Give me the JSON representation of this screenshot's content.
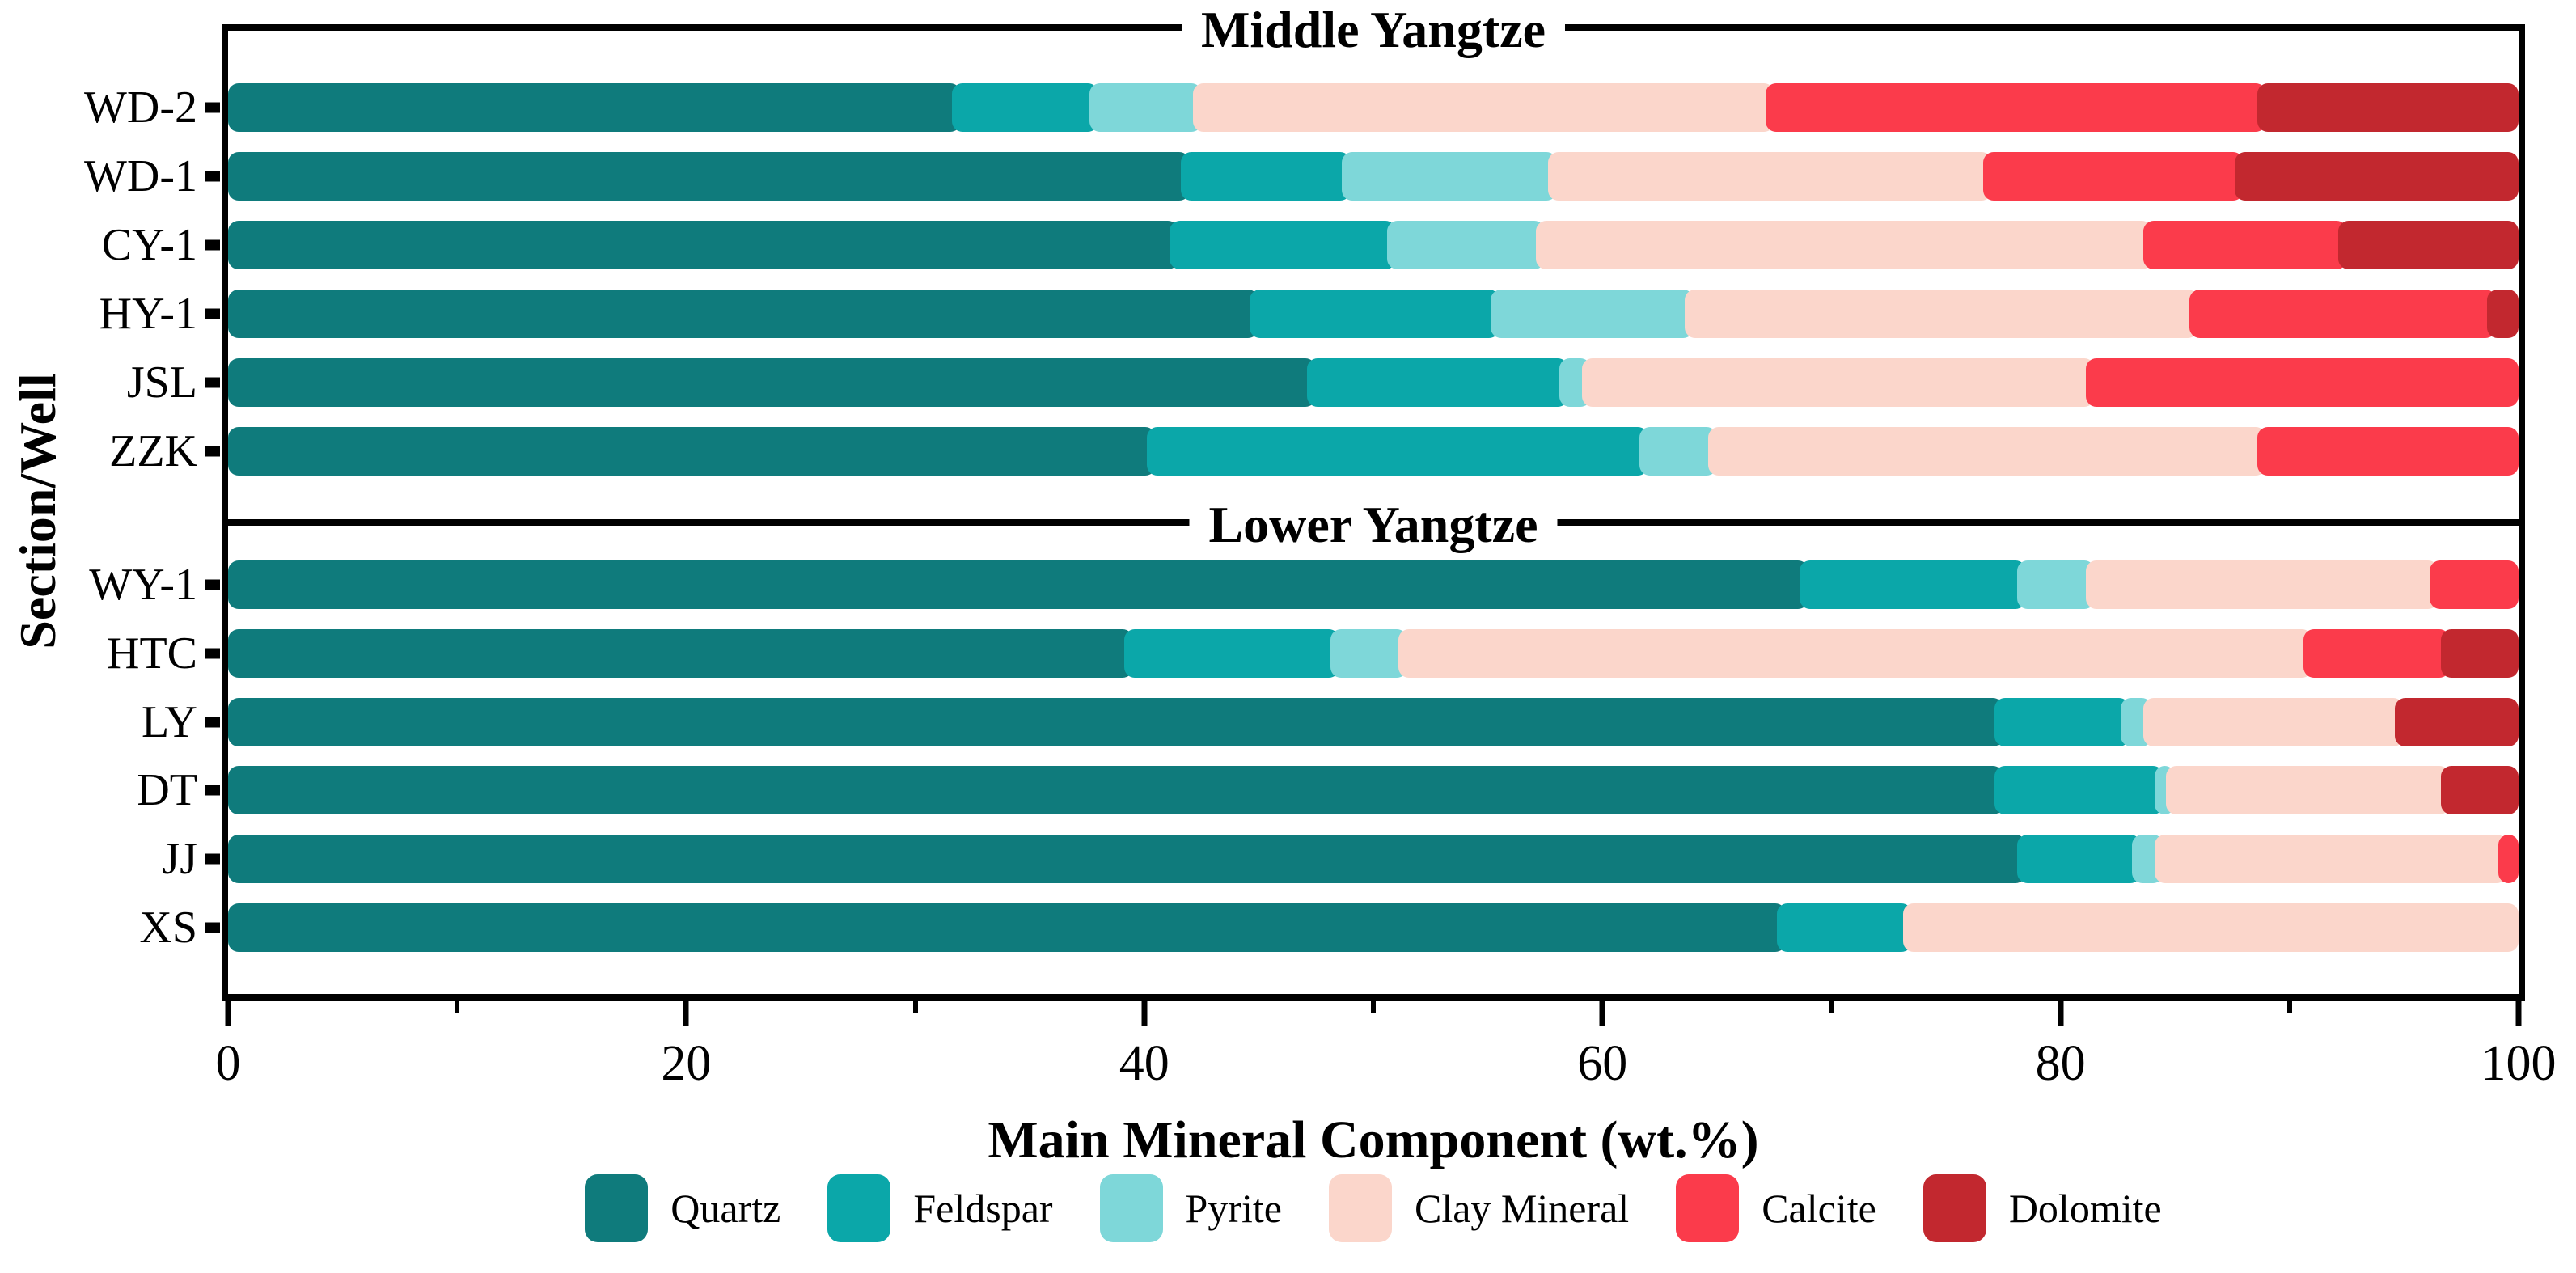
{
  "figure": {
    "y_axis_title": "Section/Well",
    "x_axis_title": "Main Mineral Component (wt.%)"
  },
  "chart_data": {
    "type": "bar",
    "orientation": "horizontal",
    "stacked": true,
    "xlabel": "Main Mineral Component (wt.%)",
    "ylabel": "Section/Well",
    "xlim": [
      0,
      100
    ],
    "xticks": [
      0,
      20,
      40,
      60,
      80,
      100
    ],
    "minor_xticks": [
      10,
      30,
      50,
      70,
      90
    ],
    "grid": false,
    "legend_position": "bottom",
    "frame_color": "#000000",
    "series_names": [
      "Quartz",
      "Feldspar",
      "Pyrite",
      "Clay Mineral",
      "Calcite",
      "Dolomite"
    ],
    "series_colors": [
      "#0f7b7c",
      "#0ba7a9",
      "#7ed7d9",
      "#fbd6cb",
      "#fb3b4b",
      "#c2282f"
    ],
    "panels": [
      {
        "title": "Middle Yangtze",
        "rows": [
          {
            "label": "WD-2",
            "values": [
              32,
              6,
              4.5,
              25,
              21.5,
              11
            ]
          },
          {
            "label": "WD-1",
            "values": [
              42,
              7,
              9,
              19,
              11,
              12
            ]
          },
          {
            "label": "CY-1",
            "values": [
              41.5,
              9.5,
              6.5,
              26.5,
              8.5,
              7.5
            ]
          },
          {
            "label": "HY-1",
            "values": [
              45,
              10.5,
              8.5,
              22,
              13,
              1
            ]
          },
          {
            "label": "JSL",
            "values": [
              47.5,
              11,
              1,
              22,
              18.5,
              0
            ]
          },
          {
            "label": "ZZK",
            "values": [
              40.5,
              21.5,
              3,
              24,
              11,
              0
            ]
          }
        ]
      },
      {
        "title": "Lower Yangtze",
        "rows": [
          {
            "label": "WY-1",
            "values": [
              69,
              9.5,
              3,
              15,
              3.5,
              0
            ]
          },
          {
            "label": "HTC",
            "values": [
              39.5,
              9,
              3,
              39.5,
              6,
              3
            ]
          },
          {
            "label": "LY",
            "values": [
              77.5,
              5.5,
              1,
              11,
              0,
              5
            ]
          },
          {
            "label": "DT",
            "values": [
              77.5,
              7,
              0.5,
              12,
              0,
              3
            ]
          },
          {
            "label": "JJ",
            "values": [
              78.5,
              5,
              1,
              15,
              0.5,
              0
            ]
          },
          {
            "label": "XS",
            "values": [
              68,
              5.5,
              0,
              26.5,
              0,
              0
            ]
          }
        ]
      }
    ]
  }
}
